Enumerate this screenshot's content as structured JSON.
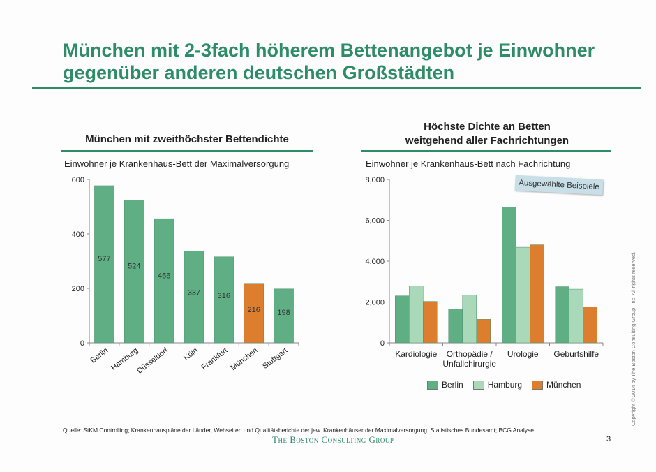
{
  "title_line1": "München mit 2-3fach höherem Bettenangebot je Einwohner",
  "title_line2": "gegenüber anderen deutschen Großstädten",
  "left_panel": {
    "title": "München mit zweithöchster Bettendichte",
    "subtitle": "Einwohner je Krankenhaus-Bett der Maximalversorgung"
  },
  "right_panel": {
    "title_line1": "Höchste Dichte an Betten",
    "title_line2": "weitgehend aller Fachrichtungen",
    "subtitle": "Einwohner je Krankenhaus-Bett nach Fachrichtung",
    "badge": "Ausgewählte Beispiele"
  },
  "legend": [
    "Berlin",
    "Hamburg",
    "München"
  ],
  "source": "Quelle: StKM Controlling; Krankenhauspläne der Länder, Webseiten und Qualitätsberichte der jew. Krankenhäuser der Maximalversorgung; Statistisches Bundesamt; BCG Analyse",
  "logo": "The Boston Consulting Group",
  "page_number": "3",
  "copyright": "Copyright © 2014 by The Boston Consulting Group, Inc. All rights reserved.",
  "colors": {
    "green": "#5fae84",
    "light_green": "#a9d9b9",
    "orange": "#dd7e2e",
    "accent": "#2f8c68"
  },
  "chart_data": [
    {
      "type": "bar",
      "categories": [
        "Berlin",
        "Hamburg",
        "Düsseldorf",
        "Köln",
        "Frankfurt",
        "München",
        "Stuttgart"
      ],
      "values": [
        577,
        524,
        456,
        337,
        316,
        216,
        198
      ],
      "value_labels": [
        "577",
        "524",
        "456",
        "337",
        "316",
        "216",
        "198"
      ],
      "highlight": "München",
      "yticks": [
        "0",
        "200",
        "400",
        "600"
      ],
      "ylim": [
        0,
        600
      ]
    },
    {
      "type": "bar",
      "categories": [
        "Kardiologie",
        "Orthopädie /\nUnfallchirurgie",
        "Urologie",
        "Geburtshilfe"
      ],
      "series": [
        {
          "name": "Berlin",
          "values": [
            2300,
            1650,
            6650,
            2750
          ]
        },
        {
          "name": "Hamburg",
          "values": [
            2780,
            2350,
            4680,
            2630
          ]
        },
        {
          "name": "München",
          "values": [
            2030,
            1150,
            4800,
            1760
          ]
        }
      ],
      "yticks": [
        "0",
        "2,000",
        "4,000",
        "6,000",
        "8,000"
      ],
      "ylim": [
        0,
        8000
      ]
    }
  ]
}
